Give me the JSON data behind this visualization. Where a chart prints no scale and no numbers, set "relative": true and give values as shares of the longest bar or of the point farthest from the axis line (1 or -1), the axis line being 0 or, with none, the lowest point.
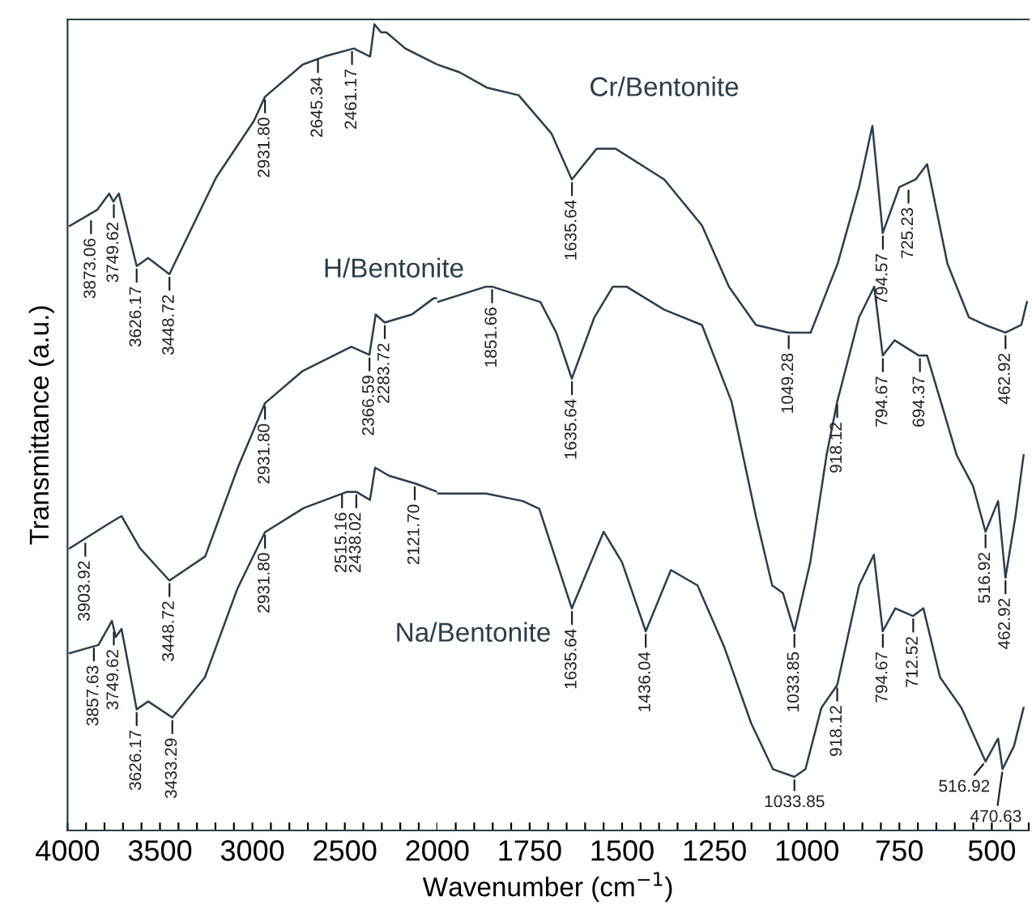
{
  "chart_data": [
    {
      "type": "line",
      "relative": true,
      "xlabel": "Wavenumber (cm$^{−1}$)",
      "ylabel": "Transmittance (a.u.)",
      "xlim": [
        4000,
        2000
      ],
      "xticks": [
        4000,
        {
          "value": 3900,
          "label": null
        },
        {
          "value": 3800,
          "label": null
        },
        {
          "value": 3700,
          "label": null
        },
        {
          "value": 3600,
          "label": null
        },
        3500,
        {
          "value": 3400,
          "label": null
        },
        {
          "value": 3300,
          "label": null
        },
        {
          "value": 3200,
          "label": null
        },
        {
          "value": 3100,
          "label": null
        },
        3000,
        {
          "value": 2900,
          "label": null
        },
        {
          "value": 2800,
          "label": null
        },
        {
          "value": 2700,
          "label": null
        },
        {
          "value": 2600,
          "label": null
        },
        2500,
        {
          "value": 2400,
          "label": null
        },
        {
          "value": 2300,
          "label": null
        },
        {
          "value": 2200,
          "label": null
        },
        {
          "value": 2100,
          "label": null
        },
        2000
      ],
      "grid": false,
      "marker": "none",
      "line_style": "solid",
      "series": [
        {
          "color": "#2b3e50",
          "x": [
            3988,
            3839,
            3775,
            3752,
            3723,
            3626,
            3564,
            3449,
            3196,
            2992,
            2932,
            2728,
            2611,
            2452,
            2363,
            2340,
            2304,
            2275,
            2173,
            2000
          ],
          "values": [
            0.75,
            0.77,
            0.79,
            0.78,
            0.79,
            0.7,
            0.71,
            0.69,
            0.81,
            0.88,
            0.91,
            0.95,
            0.96,
            0.97,
            0.96,
            1.0,
            0.99,
            0.99,
            0.97,
            0.95
          ]
        },
        {
          "name": "H/Bentonite",
          "color": "#2b3e50",
          "x": [
            3988,
            3781,
            3708,
            3608,
            3449,
            3255,
            3079,
            2932,
            2728,
            2465,
            2367,
            2333,
            2284,
            2137,
            2020,
            2000
          ],
          "values": [
            0.35,
            0.38,
            0.39,
            0.35,
            0.31,
            0.34,
            0.45,
            0.53,
            0.57,
            0.6,
            0.59,
            0.64,
            0.63,
            0.64,
            0.66,
            0.66
          ]
        },
        {
          "color": "#2b3e50",
          "x": [
            3988,
            3833,
            3760,
            3739,
            3708,
            3626,
            3564,
            3433,
            3257,
            3081,
            2932,
            2722,
            2488,
            2438,
            2364,
            2336,
            2261,
            2114,
            2000
          ],
          "values": [
            0.22,
            0.23,
            0.26,
            0.24,
            0.25,
            0.15,
            0.16,
            0.14,
            0.19,
            0.3,
            0.37,
            0.4,
            0.42,
            0.42,
            0.41,
            0.45,
            0.44,
            0.43,
            0.42
          ]
        }
      ],
      "annotations": [
        {
          "text": "3873.06",
          "x": 3873.06,
          "y": 0.76
        },
        {
          "text": "3749.62",
          "x": 3749.62,
          "y": 0.78
        },
        {
          "text": "3626.17",
          "x": 3626.17,
          "y": 0.7
        },
        {
          "text": "3448.72",
          "x": 3448.72,
          "y": 0.69
        },
        {
          "text": "2931.80",
          "x": 2931.8,
          "y": 0.91
        },
        {
          "text": "2645.34",
          "x": 2645.34,
          "y": 0.96
        },
        {
          "text": "2461.17",
          "x": 2461.17,
          "y": 0.97
        },
        {
          "text": "3903.92",
          "x": 3903.92,
          "y": 0.36
        },
        {
          "text": "3448.72",
          "x": 3448.72,
          "y": 0.31
        },
        {
          "text": "2931.80",
          "x": 2931.8,
          "y": 0.53
        },
        {
          "text": "2366.59",
          "x": 2366.59,
          "y": 0.59
        },
        {
          "text": "2283.72",
          "x": 2283.72,
          "y": 0.63
        },
        {
          "text": "3857.63",
          "x": 3857.63,
          "y": 0.23
        },
        {
          "text": "3749.62",
          "x": 3749.62,
          "y": 0.25
        },
        {
          "text": "3626.17",
          "x": 3626.17,
          "y": 0.15
        },
        {
          "text": "3433.29",
          "x": 3433.29,
          "y": 0.14
        },
        {
          "text": "2931.80",
          "x": 2931.8,
          "y": 0.37
        },
        {
          "text": "2515.16",
          "x": 2515.16,
          "y": 0.42
        },
        {
          "text": "2438.02",
          "x": 2438.02,
          "y": 0.42
        },
        {
          "text": "2121.70",
          "x": 2121.7,
          "y": 0.43
        }
      ]
    },
    {
      "type": "line",
      "relative": true,
      "xlim": [
        2000,
        400
      ],
      "xticks": [
        {
          "value": 1950,
          "label": null
        },
        {
          "value": 1900,
          "label": null
        },
        {
          "value": 1850,
          "label": null
        },
        {
          "value": 1800,
          "label": null
        },
        1750,
        {
          "value": 1700,
          "label": null
        },
        {
          "value": 1650,
          "label": null
        },
        {
          "value": 1600,
          "label": null
        },
        {
          "value": 1550,
          "label": null
        },
        1500,
        {
          "value": 1450,
          "label": null
        },
        {
          "value": 1400,
          "label": null
        },
        {
          "value": 1350,
          "label": null
        },
        {
          "value": 1300,
          "label": null
        },
        1250,
        {
          "value": 1200,
          "label": null
        },
        {
          "value": 1150,
          "label": null
        },
        {
          "value": 1100,
          "label": null
        },
        {
          "value": 1050,
          "label": null
        },
        1000,
        {
          "value": 950,
          "label": null
        },
        {
          "value": 900,
          "label": null
        },
        {
          "value": 850,
          "label": null
        },
        {
          "value": 800,
          "label": null
        },
        750,
        {
          "value": 700,
          "label": null
        },
        {
          "value": 650,
          "label": null
        },
        {
          "value": 600,
          "label": null
        },
        {
          "value": 550,
          "label": null
        },
        500,
        {
          "value": 450,
          "label": null
        },
        {
          "value": 400,
          "label": null
        }
      ],
      "grid": false,
      "marker": "none",
      "line_style": "solid",
      "series": [
        {
          "name": "Cr/Bentonite",
          "color": "#2b3e50",
          "x": [
            2000,
            1940,
            1866,
            1780,
            1691,
            1636,
            1569,
            1517,
            1386,
            1284,
            1211,
            1138,
            1049,
            990,
            917,
            859,
            823,
            795,
            750,
            706,
            675,
            620,
            562,
            518,
            463,
            420,
            405
          ],
          "values": [
            1.0,
            0.99,
            0.97,
            0.96,
            0.91,
            0.85,
            0.89,
            0.89,
            0.85,
            0.79,
            0.71,
            0.66,
            0.65,
            0.65,
            0.74,
            0.84,
            0.92,
            0.78,
            0.84,
            0.85,
            0.87,
            0.74,
            0.67,
            0.66,
            0.65,
            0.66,
            0.69
          ]
        },
        {
          "color": "#2b3e50",
          "x": [
            2000,
            1868,
            1852,
            1721,
            1678,
            1636,
            1575,
            1525,
            1488,
            1386,
            1284,
            1204,
            1138,
            1094,
            1065,
            1034,
            991,
            947,
            918,
            859,
            818,
            795,
            763,
            697,
            675,
            638,
            595,
            551,
            517,
            483,
            463,
            436,
            414
          ],
          "values": [
            0.69,
            0.71,
            0.71,
            0.69,
            0.65,
            0.59,
            0.67,
            0.71,
            0.71,
            0.68,
            0.66,
            0.56,
            0.41,
            0.32,
            0.31,
            0.26,
            0.35,
            0.49,
            0.56,
            0.67,
            0.71,
            0.62,
            0.64,
            0.62,
            0.62,
            0.56,
            0.49,
            0.45,
            0.39,
            0.43,
            0.33,
            0.41,
            0.49
          ]
        },
        {
          "name": "Na/Bentonite",
          "color": "#2b3e50",
          "x": [
            2000,
            1868,
            1768,
            1724,
            1636,
            1550,
            1500,
            1436,
            1368,
            1296,
            1224,
            1151,
            1092,
            1034,
            1004,
            961,
            918,
            859,
            819,
            795,
            761,
            713,
            685,
            640,
            582,
            517,
            483,
            471,
            440,
            414
          ],
          "values": [
            0.44,
            0.44,
            0.43,
            0.42,
            0.29,
            0.39,
            0.35,
            0.26,
            0.34,
            0.32,
            0.24,
            0.14,
            0.08,
            0.07,
            0.08,
            0.16,
            0.19,
            0.32,
            0.36,
            0.26,
            0.29,
            0.28,
            0.29,
            0.2,
            0.16,
            0.09,
            0.12,
            0.08,
            0.11,
            0.16
          ]
        }
      ],
      "annotations": [
        {
          "text": "1635.64",
          "x": 1635.64,
          "y": 0.85
        },
        {
          "text": "1049.28",
          "x": 1049.28,
          "y": 0.65
        },
        {
          "text": "794.57",
          "x": 794.57,
          "y": 0.78
        },
        {
          "text": "725.23",
          "x": 725.23,
          "y": 0.84
        },
        {
          "text": "462.92",
          "x": 462.92,
          "y": 0.65
        },
        {
          "text": "1851.66",
          "x": 1851.66,
          "y": 0.71
        },
        {
          "text": "1635.64",
          "x": 1635.64,
          "y": 0.59
        },
        {
          "text": "1033.85",
          "x": 1033.85,
          "y": 0.26
        },
        {
          "text": "918.12",
          "x": 918.12,
          "y": 0.56
        },
        {
          "text": "794.67",
          "x": 794.67,
          "y": 0.62
        },
        {
          "text": "694.37",
          "x": 694.37,
          "y": 0.62
        },
        {
          "text": "516.92",
          "x": 516.92,
          "y": 0.39
        },
        {
          "text": "462.92",
          "x": 462.92,
          "y": 0.33
        },
        {
          "text": "1635.64",
          "x": 1635.64,
          "y": 0.29
        },
        {
          "text": "1436.04",
          "x": 1436.04,
          "y": 0.26
        },
        {
          "text": "1033.85",
          "x": 1033.85,
          "y": 0.07
        },
        {
          "text": "918.12",
          "x": 918.12,
          "y": 0.19
        },
        {
          "text": "794.67",
          "x": 794.67,
          "y": 0.26
        },
        {
          "text": "712.52",
          "x": 712.52,
          "y": 0.28
        },
        {
          "text": "516.92",
          "x": 516.92,
          "y": 0.09
        },
        {
          "text": "470.63",
          "x": 470.63,
          "y": 0.08
        }
      ]
    }
  ]
}
